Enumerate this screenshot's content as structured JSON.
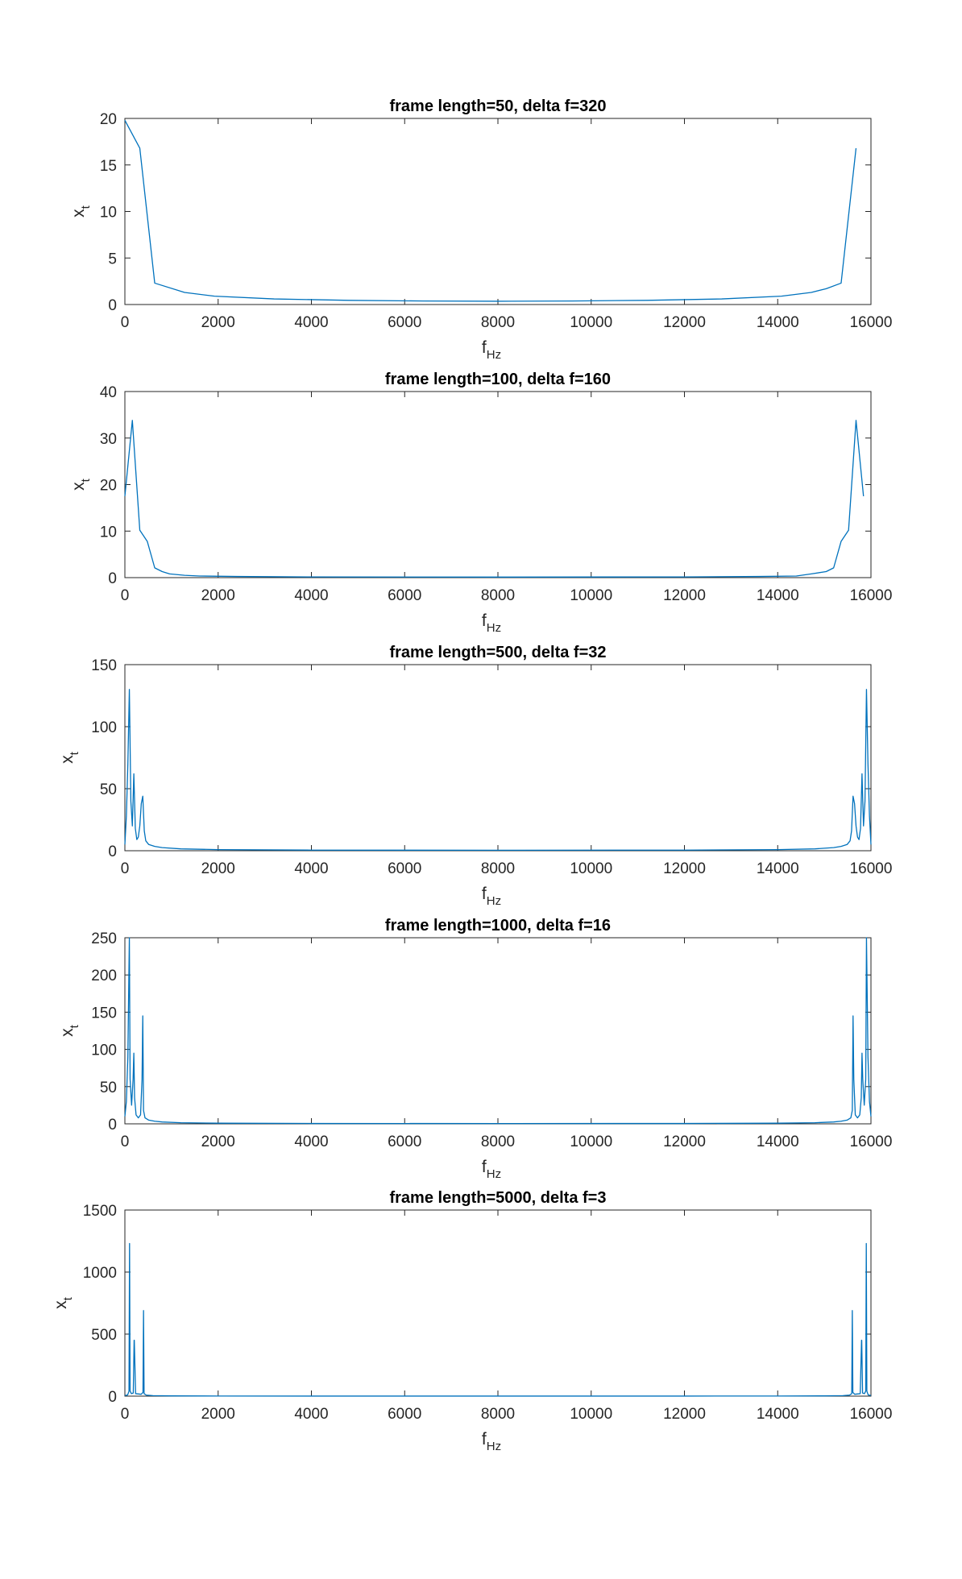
{
  "colors": {
    "series": "#0072BD",
    "axes": "#262626"
  },
  "chart_data": [
    {
      "type": "line",
      "title": "frame length=50, delta f=320",
      "xlabel": {
        "main": "f",
        "sub": "Hz"
      },
      "ylabel": {
        "main": "x",
        "sub": "t"
      },
      "xlim": [
        0,
        16000
      ],
      "ylim": [
        0,
        20
      ],
      "xticks": [
        0,
        2000,
        4000,
        6000,
        8000,
        10000,
        12000,
        14000,
        16000
      ],
      "yticks": [
        0,
        5,
        10,
        15,
        20
      ],
      "grid": false,
      "series": [
        {
          "x": [
            0,
            320,
            640,
            1280,
            1920,
            3200,
            4800,
            6400,
            8000,
            9600,
            11200,
            12800,
            14080,
            14720,
            15040,
            15360,
            15680
          ],
          "y": [
            19.8,
            16.8,
            2.3,
            1.3,
            0.9,
            0.6,
            0.45,
            0.38,
            0.35,
            0.38,
            0.45,
            0.6,
            0.9,
            1.3,
            1.7,
            2.3,
            16.8
          ]
        }
      ]
    },
    {
      "type": "line",
      "title": "frame length=100, delta f=160",
      "xlabel": {
        "main": "f",
        "sub": "Hz"
      },
      "ylabel": {
        "main": "x",
        "sub": "t"
      },
      "xlim": [
        0,
        16000
      ],
      "ylim": [
        0,
        40
      ],
      "xticks": [
        0,
        2000,
        4000,
        6000,
        8000,
        10000,
        12000,
        14000,
        16000
      ],
      "yticks": [
        0,
        10,
        20,
        30,
        40
      ],
      "grid": false,
      "series": [
        {
          "x": [
            0,
            160,
            320,
            480,
            640,
            800,
            960,
            1280,
            1600,
            2400,
            4000,
            8000,
            12000,
            13600,
            14400,
            14720,
            15040,
            15200,
            15360,
            15520,
            15680,
            15840
          ],
          "y": [
            17.5,
            33.8,
            10.2,
            7.8,
            2.1,
            1.3,
            0.8,
            0.5,
            0.35,
            0.25,
            0.15,
            0.12,
            0.15,
            0.25,
            0.35,
            0.8,
            1.3,
            2.1,
            7.8,
            10.2,
            33.8,
            17.5
          ]
        }
      ]
    },
    {
      "type": "line",
      "title": "frame length=500, delta f=32",
      "xlabel": {
        "main": "f",
        "sub": "Hz"
      },
      "ylabel": {
        "main": "x",
        "sub": "t"
      },
      "xlim": [
        0,
        16000
      ],
      "ylim": [
        0,
        150
      ],
      "xticks": [
        0,
        2000,
        4000,
        6000,
        8000,
        10000,
        12000,
        14000,
        16000
      ],
      "yticks": [
        0,
        50,
        100,
        150
      ],
      "grid": false,
      "series": [
        {
          "x": [
            0,
            32,
            64,
            96,
            128,
            160,
            192,
            224,
            256,
            288,
            320,
            352,
            384,
            416,
            448,
            512,
            640,
            800,
            1200,
            2000,
            4000,
            8000,
            12000,
            14000,
            14800,
            15200,
            15360,
            15488,
            15552,
            15584,
            15616,
            15648,
            15680,
            15712,
            15744,
            15776,
            15808,
            15840,
            15872,
            15904,
            15936,
            15968,
            16000
          ],
          "y": [
            5,
            28,
            70,
            130,
            40,
            20,
            62,
            18,
            9,
            11,
            20,
            38,
            44,
            16,
            8,
            5,
            3.5,
            2.5,
            1.5,
            0.9,
            0.5,
            0.4,
            0.5,
            0.9,
            1.5,
            2.5,
            3.5,
            5,
            8,
            16,
            44,
            38,
            20,
            11,
            9,
            18,
            62,
            20,
            40,
            130,
            70,
            28,
            5
          ]
        }
      ]
    },
    {
      "type": "line",
      "title": "frame length=1000, delta f=16",
      "xlabel": {
        "main": "f",
        "sub": "Hz"
      },
      "ylabel": {
        "main": "x",
        "sub": "t"
      },
      "xlim": [
        0,
        16000
      ],
      "ylim": [
        0,
        250
      ],
      "xticks": [
        0,
        2000,
        4000,
        6000,
        8000,
        10000,
        12000,
        14000,
        16000
      ],
      "yticks": [
        0,
        50,
        100,
        150,
        200,
        250
      ],
      "grid": false,
      "series": [
        {
          "x": [
            0,
            32,
            64,
            96,
            112,
            144,
            176,
            192,
            208,
            240,
            288,
            336,
            368,
            384,
            400,
            432,
            512,
            640,
            800,
            1200,
            2000,
            4000,
            8000,
            12000,
            14000,
            14800,
            15200,
            15360,
            15488,
            15568,
            15600,
            15616,
            15632,
            15664,
            15712,
            15760,
            15792,
            15808,
            15824,
            15856,
            15888,
            15904,
            15936,
            15968,
            16000
          ],
          "y": [
            10,
            30,
            90,
            250,
            60,
            25,
            60,
            95,
            35,
            12,
            8,
            12,
            60,
            145,
            18,
            8,
            5,
            3.5,
            2.5,
            1.5,
            0.9,
            0.5,
            0.4,
            0.5,
            0.9,
            1.5,
            2.5,
            3.5,
            5,
            8,
            18,
            145,
            60,
            12,
            8,
            12,
            35,
            95,
            60,
            25,
            60,
            250,
            90,
            30,
            10
          ]
        }
      ]
    },
    {
      "type": "line",
      "title": "frame length=5000, delta f=3",
      "xlabel": {
        "main": "f",
        "sub": "Hz"
      },
      "ylabel": {
        "main": "x",
        "sub": "t"
      },
      "xlim": [
        0,
        16000
      ],
      "ylim": [
        0,
        1500
      ],
      "xticks": [
        0,
        2000,
        4000,
        6000,
        8000,
        10000,
        12000,
        14000,
        16000
      ],
      "yticks": [
        0,
        500,
        1000,
        1500
      ],
      "grid": false,
      "series": [
        {
          "x": [
            0,
            60,
            88,
            100,
            112,
            140,
            180,
            198,
            200,
            202,
            230,
            350,
            388,
            400,
            412,
            460,
            600,
            1000,
            2000,
            4000,
            8000,
            12000,
            14000,
            15000,
            15400,
            15540,
            15588,
            15600,
            15612,
            15650,
            15770,
            15798,
            15800,
            15802,
            15820,
            15860,
            15888,
            15900,
            15912,
            15940,
            16000
          ],
          "y": [
            5,
            10,
            40,
            1230,
            40,
            20,
            25,
            450,
            450,
            450,
            20,
            15,
            30,
            690,
            20,
            8,
            4,
            2,
            1,
            0.5,
            0.3,
            0.5,
            1,
            2,
            4,
            8,
            20,
            690,
            30,
            15,
            20,
            450,
            450,
            450,
            25,
            20,
            40,
            1230,
            40,
            10,
            5
          ]
        }
      ]
    }
  ]
}
